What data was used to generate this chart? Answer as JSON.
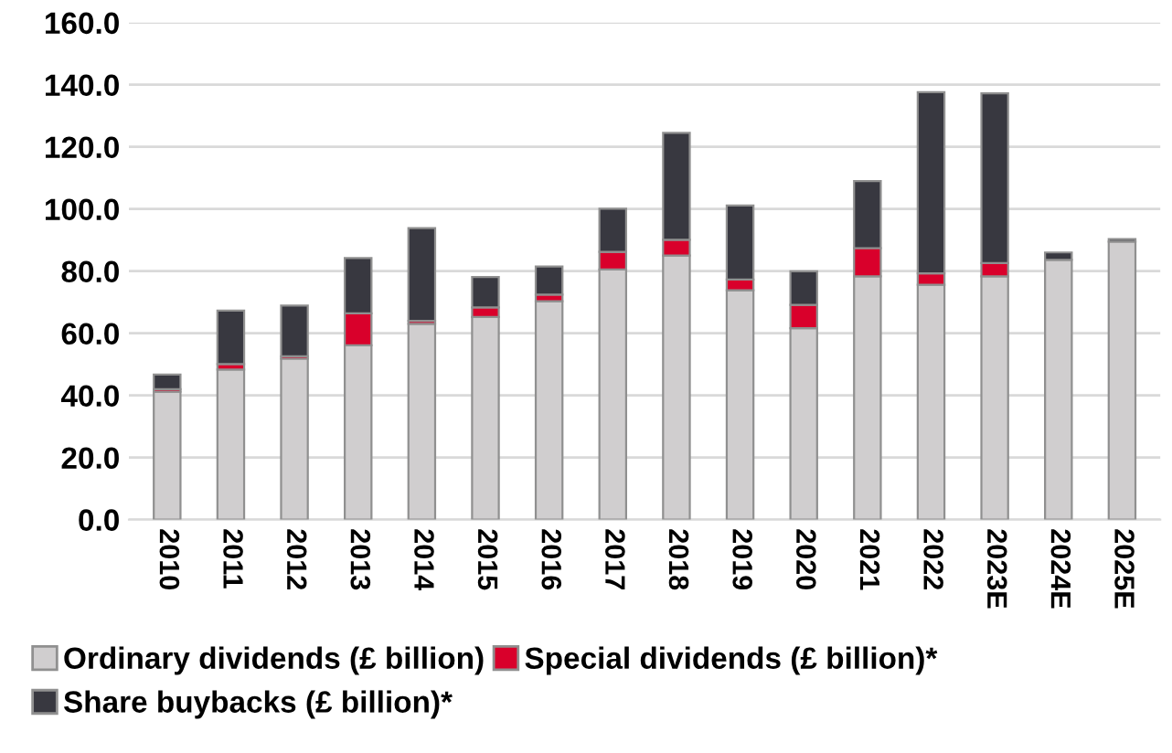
{
  "chart_data": {
    "type": "bar",
    "stacked": true,
    "categories": [
      "2010",
      "2011",
      "2012",
      "2013",
      "2014",
      "2015",
      "2016",
      "2017",
      "2018",
      "2019",
      "2020",
      "2021",
      "2022",
      "2023E",
      "2024E",
      "2025E"
    ],
    "series": [
      {
        "name": "Ordinary dividends (£ billion)",
        "color": "#d0cecf",
        "values": [
          41.2,
          48.3,
          51.8,
          56.1,
          63.0,
          65.2,
          70.3,
          80.5,
          85.0,
          73.8,
          61.6,
          78.3,
          75.6,
          78.3,
          83.6,
          89.5
        ]
      },
      {
        "name": "Special dividends (£ billion)*",
        "color": "#d9002b",
        "values": [
          0.8,
          1.8,
          0.8,
          10.3,
          1.0,
          3.1,
          2.1,
          5.7,
          5.1,
          3.5,
          7.5,
          9.1,
          3.7,
          4.3,
          0,
          0
        ]
      },
      {
        "name": "Share buybacks (£ billion)*",
        "color": "#383840",
        "values": [
          4.7,
          17.2,
          16.3,
          17.8,
          29.8,
          9.8,
          9.1,
          13.9,
          34.4,
          23.8,
          10.8,
          21.6,
          58.3,
          54.6,
          2.4,
          0.8
        ]
      }
    ],
    "ylim": [
      0,
      160
    ],
    "yticks": [
      {
        "value": 0,
        "label": "0.0"
      },
      {
        "value": 20,
        "label": "20.0"
      },
      {
        "value": 40,
        "label": "40.0"
      },
      {
        "value": 60,
        "label": "60.0"
      },
      {
        "value": 80,
        "label": "80.0"
      },
      {
        "value": 100,
        "label": "100.0"
      },
      {
        "value": 120,
        "label": "120.0"
      },
      {
        "value": 140,
        "label": "140.0"
      },
      {
        "value": 160,
        "label": "160.0"
      }
    ],
    "grid": "y",
    "legend": "bottom"
  }
}
